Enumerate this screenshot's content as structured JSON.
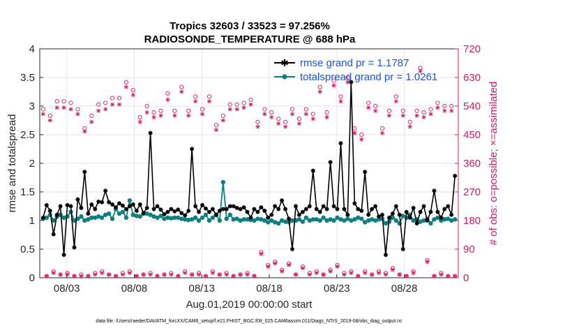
{
  "chart_data": {
    "type": "line",
    "title": "Tropics 32603 / 33523 = 97.256%",
    "subtitle": "RADIOSONDE_TEMPERATURE @ 688 hPa",
    "xlabel": "Aug.01,2019 00:00:00 start",
    "ylabel": "rmse and totalspread",
    "y2label": "# of obs: o=possible; ×=assimilated",
    "footnote": "data file: /Users/raeder/DAI/ATM_forcXX/CAM6_setup/f.e21.FHIST_BGC.f09_025.CAM6assim.011/Diags_NTrS_2019-08/obs_diag_output.nc",
    "xlim": [
      1,
      32
    ],
    "ylim": [
      0,
      4
    ],
    "y2lim": [
      0,
      720
    ],
    "x_ticks": [
      3,
      8,
      13,
      18,
      23,
      28
    ],
    "x_tick_labels": [
      "08/03",
      "08/08",
      "08/13",
      "08/18",
      "08/23",
      "08/28"
    ],
    "y_ticks": [
      0,
      0.5,
      1,
      1.5,
      2,
      2.5,
      3,
      3.5,
      4
    ],
    "y_tick_labels": [
      "0",
      "0.5",
      "1",
      "1.5",
      "2",
      "2.5",
      "3",
      "3.5",
      "4"
    ],
    "y2_ticks": [
      0,
      90,
      180,
      270,
      360,
      450,
      540,
      630,
      720
    ],
    "y2_tick_labels": [
      "0",
      "90",
      "180",
      "270",
      "360",
      "450",
      "540",
      "630",
      "720"
    ],
    "grid": true,
    "legend_position": "top-right",
    "colors": {
      "rmse": "#000000",
      "spread": "#0e7f7f",
      "obs": "#d81b60",
      "legend_text": "#1a56db",
      "grid": "#e6e6e6",
      "axis": "#262626"
    },
    "series": [
      {
        "name": "rmse grand pr = 1.1787",
        "values": [
          1.05,
          1.27,
          1.17,
          0.76,
          1.1,
          1.25,
          0.4,
          1.27,
          1.25,
          0.53,
          1.37,
          1.22,
          1.85,
          1.12,
          1.28,
          1.2,
          1.33,
          1.32,
          1.52,
          1.32,
          1.28,
          1.23,
          1.3,
          1.26,
          1.2,
          1.25,
          1.28,
          1.17,
          1.28,
          1.13,
          1.22,
          2.53,
          1.2,
          1.25,
          1.19,
          1.11,
          1.15,
          1.2,
          1.16,
          1.19,
          1.13,
          1.09,
          1.17,
          2.25,
          1.25,
          1.15,
          1.27,
          1.21,
          1.15,
          1.2,
          1.1,
          1.17,
          1.2,
          1.2,
          1.25,
          1.25,
          1.22,
          1.2,
          1.23,
          1.15,
          1.05,
          1.2,
          1.15,
          1.23,
          1.17,
          1.05,
          1.1,
          1.25,
          1.2,
          1.35,
          1.2,
          1.03,
          0.5,
          1.25,
          1.1,
          1.15,
          1.2,
          1.25,
          1.87,
          1.2,
          1.15,
          1.25,
          1.2,
          2.02,
          1.25,
          1.2,
          2.35,
          1.2,
          1.1,
          3.42,
          1.3,
          1.2,
          1.17,
          1.85,
          1.1,
          1.2,
          1.25,
          1.07,
          1.1,
          0.4,
          1.05,
          1.12,
          1.25,
          1.1,
          0.5,
          1.15,
          1.05,
          1.22,
          0.95,
          1.15,
          1.25,
          1.0,
          1.15,
          1.52,
          1.15,
          1.05,
          1.2,
          1.25,
          1.1,
          1.78
        ],
        "color": "#000000"
      },
      {
        "name": "totalspread grand pr = 1.0261",
        "values": [
          1.03,
          1.05,
          1.1,
          1.0,
          1.07,
          1.1,
          1.05,
          1.07,
          1.15,
          1.0,
          1.03,
          1.07,
          1.0,
          1.02,
          1.05,
          1.05,
          1.07,
          1.05,
          1.1,
          1.12,
          1.03,
          1.2,
          1.12,
          1.15,
          1.05,
          1.35,
          1.1,
          1.08,
          1.07,
          1.12,
          1.12,
          1.1,
          1.07,
          1.05,
          1.08,
          1.03,
          1.05,
          1.04,
          1.05,
          1.05,
          1.03,
          1.02,
          1.01,
          1.02,
          1.05,
          1.0,
          1.05,
          1.1,
          1.0,
          1.05,
          1.1,
          1.0,
          1.67,
          1.03,
          1.1,
          1.02,
          1.03,
          1.0,
          1.02,
          1.02,
          1.01,
          1.0,
          1.03,
          1.02,
          1.0,
          0.97,
          1.0,
          0.97,
          0.95,
          1.0,
          0.98,
          0.97,
          1.0,
          1.0,
          1.02,
          0.98,
          1.05,
          1.0,
          1.02,
          1.02,
          1.0,
          1.05,
          1.0,
          1.02,
          1.0,
          1.05,
          1.02,
          1.0,
          1.03,
          1.0,
          1.02,
          1.05,
          1.03,
          0.97,
          1.0,
          1.02,
          1.0,
          1.02,
          1.03,
          0.95,
          0.98,
          1.05,
          1.0,
          0.95,
          1.08,
          1.05,
          1.1,
          1.0,
          1.02,
          0.98,
          1.0,
          1.03,
          0.95,
          1.02,
          1.05,
          1.0,
          1.02,
          1.03,
          1.0,
          1.02
        ],
        "color": "#0e7f7f"
      },
      {
        "name": "obs possible",
        "marker": "o",
        "values": [
          530,
          5,
          510,
          20,
          555,
          10,
          555,
          15,
          550,
          5,
          530,
          10,
          470,
          5,
          510,
          15,
          545,
          20,
          550,
          10,
          565,
          5,
          565,
          15,
          615,
          20,
          590,
          5,
          505,
          10,
          540,
          15,
          520,
          5,
          525,
          10,
          580,
          15,
          525,
          5,
          600,
          20,
          525,
          10,
          570,
          15,
          530,
          5,
          570,
          20,
          480,
          10,
          510,
          15,
          545,
          5,
          545,
          10,
          550,
          15,
          560,
          5,
          490,
          80,
          530,
          40,
          520,
          50,
          500,
          25,
          490,
          45,
          530,
          10,
          500,
          35,
          530,
          15,
          515,
          20,
          600,
          10,
          520,
          25,
          620,
          40,
          570,
          15,
          630,
          20,
          470,
          5,
          450,
          20,
          550,
          10,
          540,
          20,
          470,
          15,
          525,
          30,
          570,
          10,
          525,
          5,
          490,
          20,
          525,
          660,
          520,
          55,
          530,
          5,
          550,
          15,
          540,
          5,
          540,
          5
        ],
        "color": "#d81b60"
      },
      {
        "name": "obs assimilated",
        "marker": "x",
        "values": [
          515,
          5,
          495,
          15,
          535,
          10,
          535,
          10,
          530,
          5,
          515,
          5,
          460,
          5,
          490,
          10,
          525,
          15,
          530,
          10,
          545,
          5,
          545,
          10,
          600,
          15,
          575,
          5,
          490,
          10,
          520,
          10,
          505,
          5,
          510,
          10,
          560,
          10,
          510,
          5,
          585,
          15,
          510,
          10,
          555,
          10,
          515,
          5,
          555,
          15,
          465,
          10,
          495,
          10,
          530,
          5,
          530,
          10,
          535,
          10,
          545,
          5,
          475,
          75,
          515,
          35,
          505,
          45,
          485,
          20,
          475,
          40,
          515,
          10,
          485,
          30,
          515,
          10,
          500,
          15,
          585,
          10,
          505,
          20,
          605,
          35,
          555,
          10,
          615,
          15,
          455,
          5,
          435,
          15,
          535,
          10,
          525,
          15,
          455,
          10,
          510,
          25,
          555,
          10,
          510,
          5,
          475,
          15,
          510,
          650,
          505,
          50,
          515,
          5,
          535,
          10,
          525,
          5,
          525,
          5
        ],
        "color": "#d81b60"
      }
    ]
  }
}
